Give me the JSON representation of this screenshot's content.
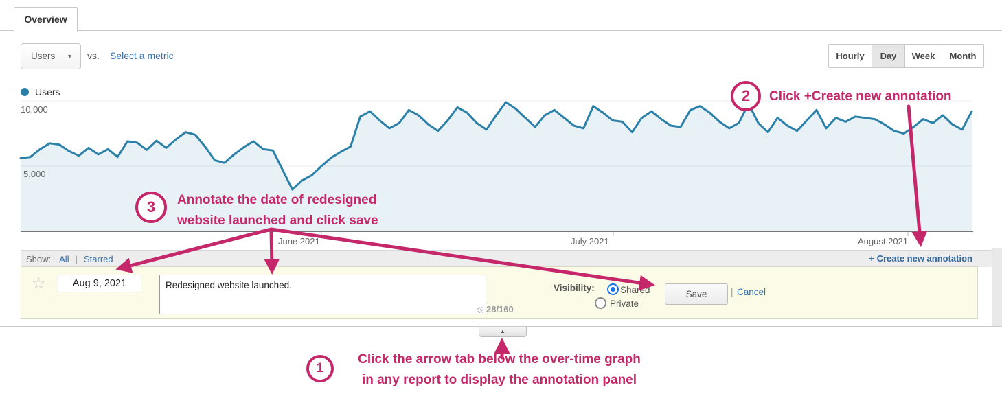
{
  "tab": {
    "label": "Overview"
  },
  "metric_bar": {
    "metric_selector_value": "Users",
    "vs_label": "vs.",
    "select_metric_link": "Select a metric"
  },
  "interval_buttons": {
    "options": [
      "Hourly",
      "Day",
      "Week",
      "Month"
    ],
    "selected": "Day"
  },
  "legend": {
    "label": "Users",
    "color": "#2a80a8"
  },
  "chart_data": {
    "type": "area",
    "series_name": "Users",
    "granularity": "Day",
    "y_ticks": [
      "10,000",
      "5,000"
    ],
    "x_ticks": [
      "June 2021",
      "July 2021",
      "August 2021"
    ],
    "ylim": [
      0,
      10000
    ],
    "values": [
      5600,
      5700,
      6300,
      6750,
      6650,
      6150,
      5800,
      6400,
      5900,
      6300,
      5700,
      6900,
      6800,
      6250,
      6950,
      6400,
      7050,
      7600,
      7400,
      6500,
      5450,
      5250,
      5900,
      6450,
      6900,
      6300,
      6200,
      4700,
      3200,
      3900,
      4300,
      5000,
      5650,
      6100,
      6500,
      8800,
      9200,
      8500,
      7900,
      8300,
      9300,
      8900,
      8200,
      7700,
      8500,
      9500,
      9100,
      8300,
      7800,
      8900,
      9900,
      9400,
      8700,
      8000,
      8900,
      9300,
      8700,
      8100,
      7900,
      9600,
      9100,
      8500,
      8400,
      7600,
      8700,
      9200,
      8600,
      8100,
      8000,
      9300,
      9600,
      9100,
      8400,
      7900,
      8300,
      9800,
      8300,
      7600,
      8700,
      8100,
      7700,
      8500,
      9300,
      7900,
      8700,
      8400,
      8800,
      8700,
      8600,
      8200,
      7700,
      7500,
      8000,
      8600,
      8300,
      8900,
      8200,
      7800,
      9200
    ],
    "line_color": "#2a80a8",
    "fill_color": "rgba(42,128,168,0.11)",
    "grid": true,
    "legend_position": "top-left"
  },
  "annotations_bar": {
    "show_label": "Show:",
    "filter_all": "All",
    "separator": "|",
    "filter_starred": "Starred",
    "create_link": "+ Create new annotation"
  },
  "annotation_form": {
    "star_icon": "☆",
    "date_value": "Aug 9, 2021",
    "text_value": "Redesigned website launched.",
    "char_counter": "28/160",
    "visibility_label": "Visibility:",
    "visibility_options": [
      {
        "label": "Shared",
        "selected": true
      },
      {
        "label": "Private",
        "selected": false
      }
    ],
    "save_label": "Save",
    "cancel_separator": "|",
    "cancel_label": "Cancel"
  },
  "panel_toggle": {
    "arrow_icon": "▲"
  },
  "tutorial": {
    "accent_color": "#c4286a",
    "steps": [
      {
        "number": "1",
        "lines": [
          "Click the arrow tab below the over-time graph",
          "in any report to display the annotation panel"
        ]
      },
      {
        "number": "2",
        "lines": [
          "Click +Create new annotation"
        ]
      },
      {
        "number": "3",
        "lines": [
          "Annotate the date of redesigned",
          "website launched and click save"
        ]
      }
    ]
  },
  "dropdown_caret_icon": "▼"
}
